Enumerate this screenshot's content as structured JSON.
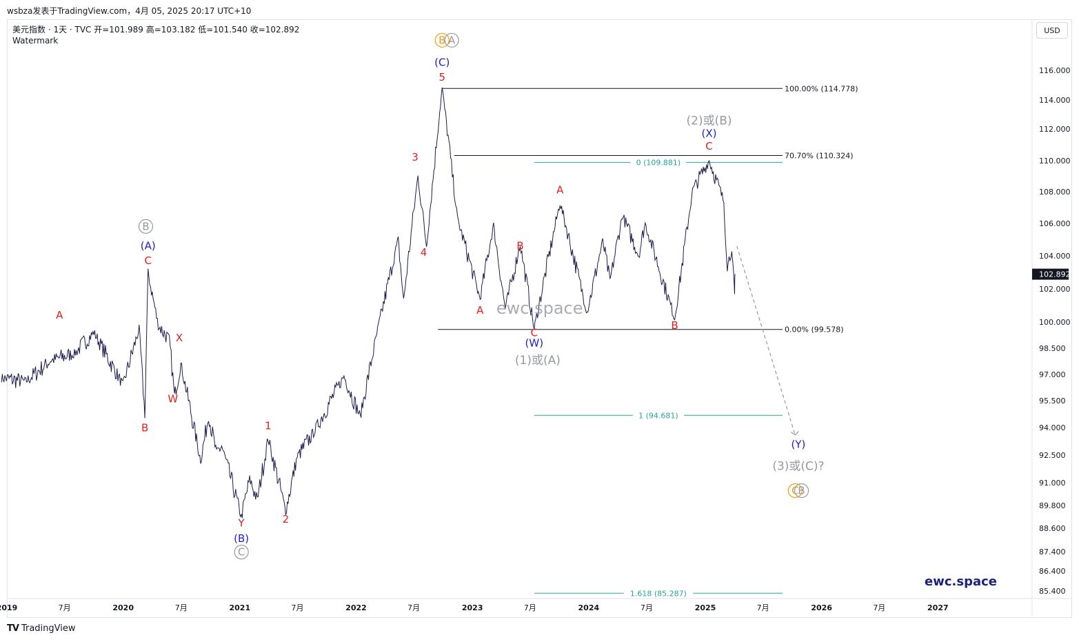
{
  "header": {
    "publisher_line": "wsbza发表于TradingView.com，4月 05, 2025 20:17 UTC+10"
  },
  "legend": {
    "symbol_line": "美元指数 · 1天 · TVC  开=101.989  高=103.182  低=101.540  收=102.892",
    "watermark_label": "Watermark"
  },
  "currency_button": "USD",
  "footer": {
    "brand": "TradingView",
    "brand_logo": "TV"
  },
  "chart_data": {
    "type": "line",
    "instrument": "美元指数",
    "interval": "1天",
    "source": "TVC",
    "ohlc": {
      "open": 101.989,
      "high": 103.182,
      "low": 101.54,
      "close": 102.892
    },
    "last_price_label": "102.892",
    "y_ticks": [
      "116.000",
      "114.000",
      "112.000",
      "110.000",
      "108.000",
      "106.000",
      "104.000",
      "102.000",
      "100.000",
      "98.500",
      "97.000",
      "95.500",
      "94.000",
      "92.500",
      "91.000",
      "89.800",
      "88.600",
      "87.400",
      "86.400",
      "85.400"
    ],
    "x_ticks": [
      "2019",
      "7月",
      "2020",
      "7月",
      "2021",
      "7月",
      "2022",
      "7月",
      "2023",
      "7月",
      "2024",
      "7月",
      "2025",
      "7月",
      "2026",
      "7月",
      "2027"
    ],
    "price_key_points": [
      {
        "x": "2018-12-15",
        "y": 96.8
      },
      {
        "x": "2019-03-01",
        "y": 96.6
      },
      {
        "x": "2019-05-20",
        "y": 97.8
      },
      {
        "x": "2019-08-01",
        "y": 98.2
      },
      {
        "x": "2019-10-01",
        "y": 99.4
      },
      {
        "x": "2019-12-31",
        "y": 96.4
      },
      {
        "x": "2020-02-20",
        "y": 99.6
      },
      {
        "x": "2020-03-09",
        "y": 94.7
      },
      {
        "x": "2020-03-19",
        "y": 103.0
      },
      {
        "x": "2020-04-20",
        "y": 99.8
      },
      {
        "x": "2020-05-25",
        "y": 99.0
      },
      {
        "x": "2020-06-10",
        "y": 95.8
      },
      {
        "x": "2020-06-30",
        "y": 97.6
      },
      {
        "x": "2020-08-31",
        "y": 92.2
      },
      {
        "x": "2020-09-25",
        "y": 94.6
      },
      {
        "x": "2020-10-20",
        "y": 92.6
      },
      {
        "x": "2020-11-05",
        "y": 93.0
      },
      {
        "x": "2021-01-06",
        "y": 89.2
      },
      {
        "x": "2021-02-01",
        "y": 91.2
      },
      {
        "x": "2021-02-25",
        "y": 90.1
      },
      {
        "x": "2021-03-31",
        "y": 93.4
      },
      {
        "x": "2021-05-25",
        "y": 89.5
      },
      {
        "x": "2021-06-30",
        "y": 92.4
      },
      {
        "x": "2021-08-20",
        "y": 93.7
      },
      {
        "x": "2021-11-24",
        "y": 96.9
      },
      {
        "x": "2022-01-14",
        "y": 94.6
      },
      {
        "x": "2022-03-07",
        "y": 99.3
      },
      {
        "x": "2022-05-13",
        "y": 105.0
      },
      {
        "x": "2022-05-30",
        "y": 101.3
      },
      {
        "x": "2022-07-14",
        "y": 109.0
      },
      {
        "x": "2022-08-10",
        "y": 104.6
      },
      {
        "x": "2022-09-28",
        "y": 114.8
      },
      {
        "x": "2022-11-15",
        "y": 106.3
      },
      {
        "x": "2023-01-25",
        "y": 101.4
      },
      {
        "x": "2023-03-08",
        "y": 105.9
      },
      {
        "x": "2023-04-14",
        "y": 100.8
      },
      {
        "x": "2023-05-31",
        "y": 104.7
      },
      {
        "x": "2023-07-14",
        "y": 99.6
      },
      {
        "x": "2023-10-03",
        "y": 107.3
      },
      {
        "x": "2023-12-27",
        "y": 100.6
      },
      {
        "x": "2024-02-14",
        "y": 104.9
      },
      {
        "x": "2024-03-08",
        "y": 102.5
      },
      {
        "x": "2024-04-16",
        "y": 106.5
      },
      {
        "x": "2024-06-06",
        "y": 104.0
      },
      {
        "x": "2024-06-26",
        "y": 106.0
      },
      {
        "x": "2024-09-27",
        "y": 100.2
      },
      {
        "x": "2024-11-22",
        "y": 108.1
      },
      {
        "x": "2025-01-13",
        "y": 110.0
      },
      {
        "x": "2025-02-28",
        "y": 107.4
      },
      {
        "x": "2025-03-11",
        "y": 103.3
      },
      {
        "x": "2025-03-25",
        "y": 104.5
      },
      {
        "x": "2025-04-03",
        "y": 101.5
      },
      {
        "x": "2025-04-04",
        "y": 102.9
      }
    ],
    "fib_levels": [
      {
        "label": "100.00% (114.778)",
        "value": 114.778,
        "color": "#131722"
      },
      {
        "label": "70.70% (110.324)",
        "value": 110.324,
        "color": "#131722"
      },
      {
        "label": "0.00% (99.578)",
        "value": 99.578,
        "color": "#131722"
      }
    ],
    "fib_extension_levels": [
      {
        "label": "0 (109.881)",
        "value": 109.881,
        "color": "#26a69a"
      },
      {
        "label": "1 (94.681)",
        "value": 94.681,
        "color": "#26a69a"
      },
      {
        "label": "1.618 (85.287)",
        "value": 85.287,
        "color": "#26a69a"
      }
    ],
    "projection": {
      "from": {
        "x": "2025-04-10",
        "y": 104.6
      },
      "to": {
        "x": "2025-10-10",
        "y": 93.6
      },
      "style": "dashed"
    },
    "wave_labels": [
      {
        "text": "A",
        "x": "2019-06-15",
        "y": 100.2,
        "color": "#e31d1d"
      },
      {
        "text": "B",
        "x": "2020-03-09",
        "y": 93.8,
        "color": "#e31d1d"
      },
      {
        "text": "C",
        "x": "2020-03-19",
        "y": 103.5,
        "color": "#e31d1d"
      },
      {
        "text": "(A)",
        "x": "2020-03-19",
        "y": 104.4,
        "color": "#1d1dcc"
      },
      {
        "text": "B",
        "x": "2020-03-12",
        "y": 105.6,
        "color": "#9598a1",
        "circled": true
      },
      {
        "text": "X",
        "x": "2020-06-25",
        "y": 98.9,
        "color": "#e31d1d"
      },
      {
        "text": "W",
        "x": "2020-06-05",
        "y": 95.4,
        "color": "#e31d1d"
      },
      {
        "text": "Y",
        "x": "2021-01-06",
        "y": 88.7,
        "color": "#e31d1d"
      },
      {
        "text": "(B)",
        "x": "2021-01-06",
        "y": 87.9,
        "color": "#1d1dcc"
      },
      {
        "text": "C",
        "x": "2021-01-06",
        "y": 87.2,
        "color": "#9598a1",
        "circled": true
      },
      {
        "text": "1",
        "x": "2021-03-31",
        "y": 93.9,
        "color": "#e31d1d"
      },
      {
        "text": "2",
        "x": "2021-05-25",
        "y": 88.9,
        "color": "#e31d1d"
      },
      {
        "text": "3",
        "x": "2022-07-05",
        "y": 110.0,
        "color": "#e31d1d"
      },
      {
        "text": "4",
        "x": "2022-08-01",
        "y": 104.0,
        "color": "#e31d1d"
      },
      {
        "text": "5",
        "x": "2022-09-28",
        "y": 115.3,
        "color": "#e31d1d"
      },
      {
        "text": "(C)",
        "x": "2022-09-28",
        "y": 116.3,
        "color": "#1d1dcc"
      },
      {
        "text": "B",
        "x": "2022-09-28",
        "y": 117.8,
        "color": "#f39c12",
        "circled": true
      },
      {
        "text": "A",
        "x": "2022-10-28",
        "y": 117.8,
        "color": "#9598a1",
        "circled": true
      },
      {
        "text": "A",
        "x": "2023-01-25",
        "y": 100.5,
        "color": "#e31d1d"
      },
      {
        "text": "B",
        "x": "2023-05-31",
        "y": 104.4,
        "color": "#e31d1d"
      },
      {
        "text": "C",
        "x": "2023-07-14",
        "y": 99.2,
        "color": "#e31d1d"
      },
      {
        "text": "(W)",
        "x": "2023-07-14",
        "y": 98.6,
        "color": "#1d1dcc"
      },
      {
        "text": "(1)或(A)",
        "x": "2023-07-25",
        "y": 97.6,
        "color": "#9598a1"
      },
      {
        "text": "A",
        "x": "2023-10-03",
        "y": 107.9,
        "color": "#e31d1d"
      },
      {
        "text": "B",
        "x": "2024-09-27",
        "y": 99.6,
        "color": "#e31d1d"
      },
      {
        "text": "C",
        "x": "2025-01-13",
        "y": 110.7,
        "color": "#e31d1d"
      },
      {
        "text": "(X)",
        "x": "2025-01-13",
        "y": 111.5,
        "color": "#1d1dcc"
      },
      {
        "text": "(2)或(B)",
        "x": "2025-01-13",
        "y": 112.3,
        "color": "#9598a1"
      },
      {
        "text": "(Y)",
        "x": "2025-10-20",
        "y": 92.9,
        "color": "#1d1dcc"
      },
      {
        "text": "(3)或(C)?",
        "x": "2025-10-20",
        "y": 91.7,
        "color": "#9598a1"
      },
      {
        "text": "C",
        "x": "2025-10-10",
        "y": 90.4,
        "color": "#f39c12",
        "circled": true
      },
      {
        "text": "B",
        "x": "2025-10-30",
        "y": 90.4,
        "color": "#9598a1",
        "circled": true
      }
    ],
    "watermarks": [
      {
        "text": "ewc.space",
        "x": "2023-07-31",
        "y": 100.5,
        "color": "#9598a1"
      },
      {
        "text": "ewc.space",
        "position": "bottom-right",
        "color": "#1a237e"
      }
    ]
  }
}
